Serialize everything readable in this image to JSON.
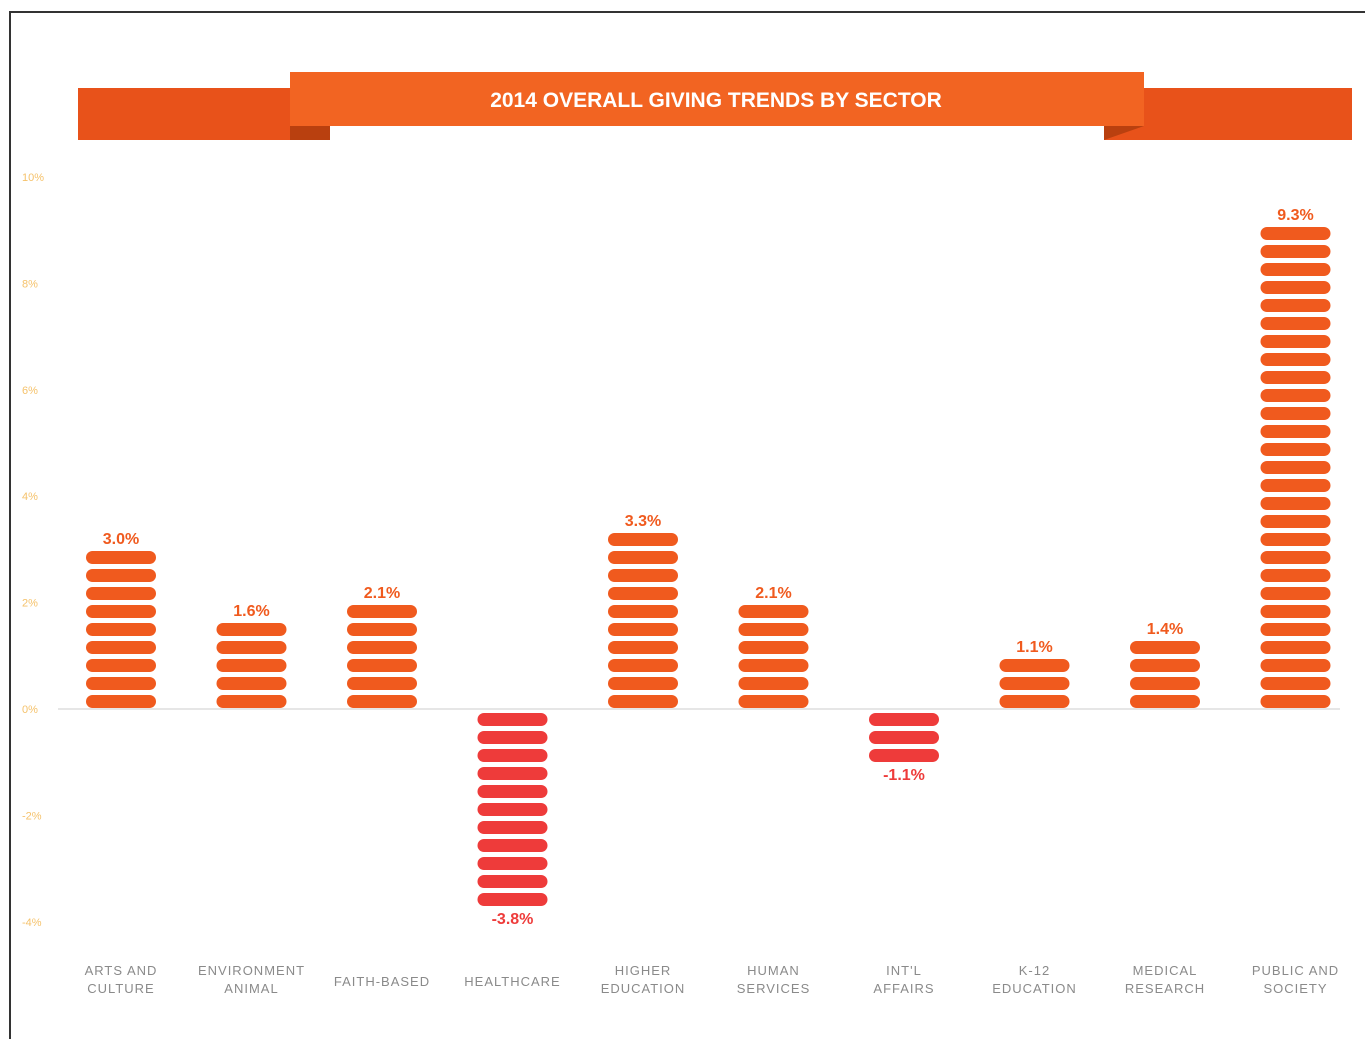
{
  "chart_data": {
    "type": "bar",
    "title": "2014 OVERALL GIVING TRENDS BY SECTOR",
    "categories": [
      [
        "ARTS AND",
        "CULTURE"
      ],
      [
        "ENVIRONMENT",
        "ANIMAL"
      ],
      [
        "FAITH-BASED"
      ],
      [
        "HEALTHCARE"
      ],
      [
        "HIGHER",
        "EDUCATION"
      ],
      [
        "HUMAN",
        "SERVICES"
      ],
      [
        "INT'L",
        "AFFAIRS"
      ],
      [
        "K-12",
        "EDUCATION"
      ],
      [
        "MEDICAL",
        "RESEARCH"
      ],
      [
        "PUBLIC AND",
        "SOCIETY"
      ]
    ],
    "values": [
      3.0,
      1.6,
      2.1,
      -3.8,
      3.3,
      2.1,
      -1.1,
      1.1,
      1.4,
      9.3
    ],
    "data_labels": [
      "3.0%",
      "1.6%",
      "2.1%",
      "-3.8%",
      "3.3%",
      "2.1%",
      "-1.1%",
      "1.1%",
      "1.4%",
      "9.3%"
    ],
    "yticks": [
      "10%",
      "8%",
      "6%",
      "4%",
      "2%",
      "0%",
      "-2%",
      "-4%"
    ],
    "ylim": [
      -4,
      10
    ],
    "xlabel": "",
    "ylabel": "",
    "grid": false,
    "legend": "none",
    "colors": {
      "positive": "#f05a1e",
      "negative": "#ee3b3a",
      "banner": "#e8521a",
      "banner_center": "#f26422",
      "tick_label": "#f5c26b",
      "category_label": "#8a8a8a"
    }
  }
}
